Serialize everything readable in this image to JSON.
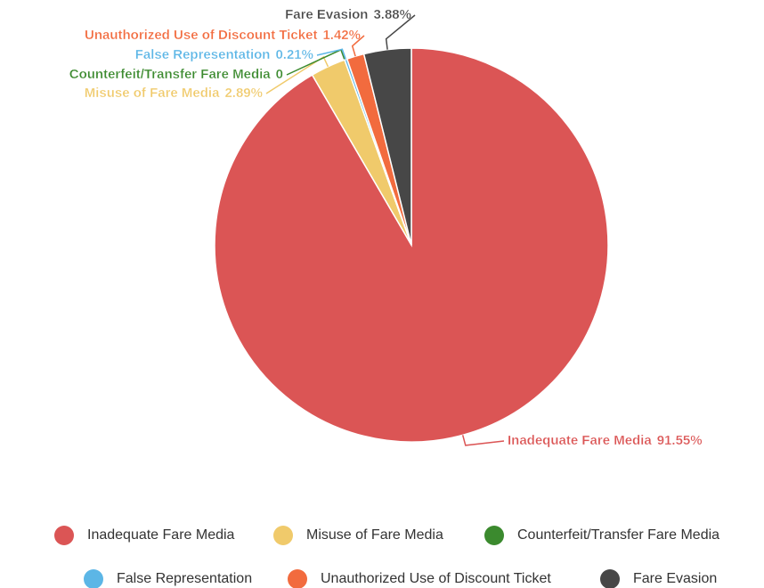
{
  "chart_data": {
    "type": "pie",
    "categories": [
      "Inadequate Fare Media",
      "Misuse of Fare Media",
      "Counterfeit/Transfer Fare Media",
      "False Representation",
      "Unauthorized Use of Discount Ticket",
      "Fare Evasion"
    ],
    "values": [
      91.55,
      2.89,
      0,
      0.21,
      1.42,
      3.88
    ],
    "value_labels": [
      "91.55%",
      "2.89%",
      "0",
      "0.21%",
      "1.42%",
      "3.88%"
    ],
    "colors": [
      "#db5555",
      "#f0ca6b",
      "#3b8a2e",
      "#5cb6e6",
      "#f26b3e",
      "#474747"
    ],
    "legend": "bottom"
  }
}
